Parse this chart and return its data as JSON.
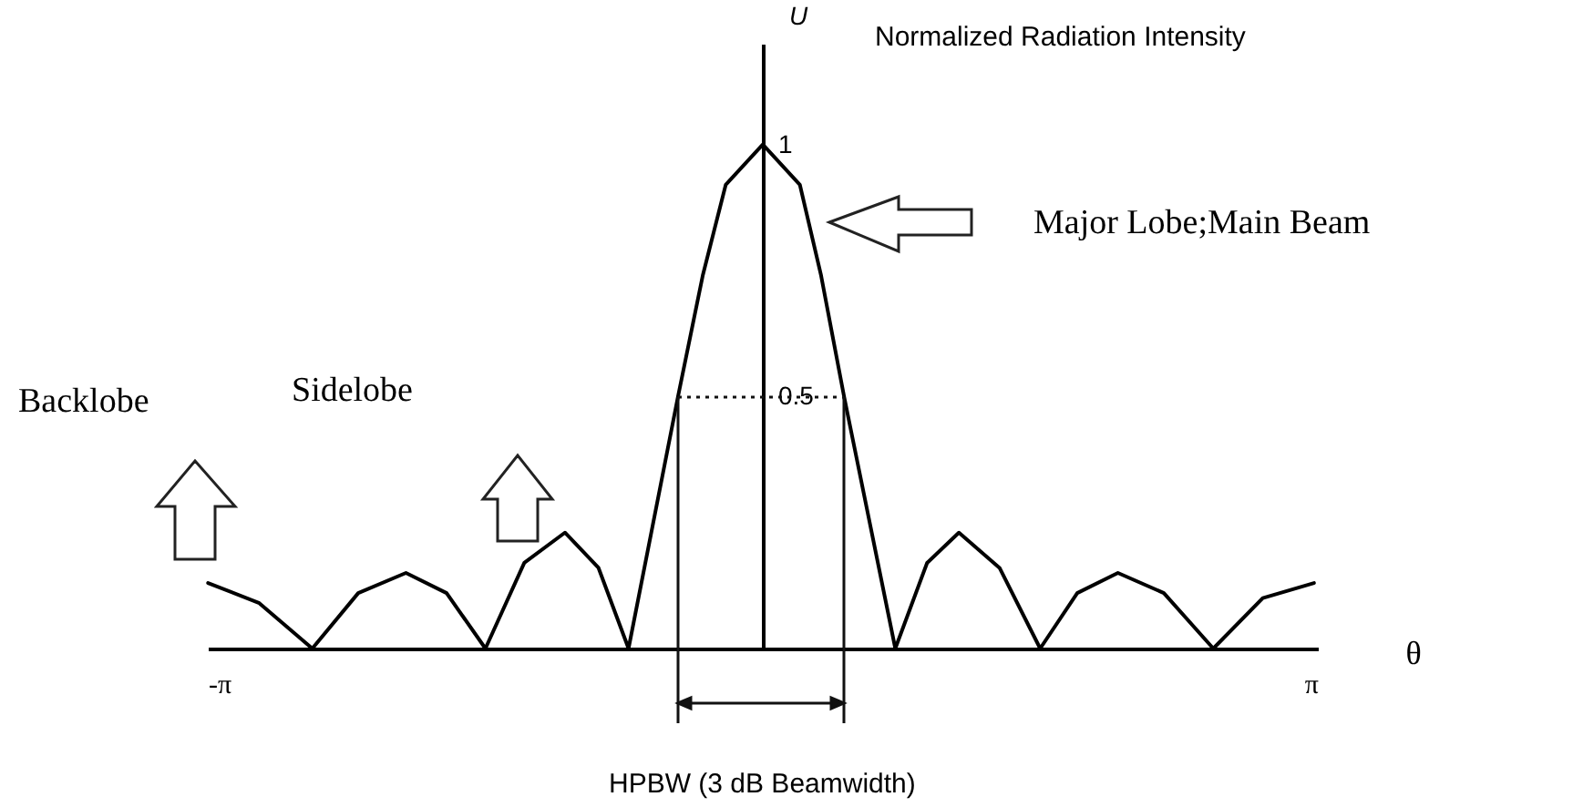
{
  "chart_data": {
    "type": "line",
    "xlabel": "θ",
    "ylabel": "U",
    "x": [
      -3.14,
      -2.85,
      -2.55,
      -2.29,
      -2.02,
      -1.79,
      -1.57,
      -1.35,
      -1.12,
      -0.93,
      -0.76,
      -0.48,
      -0.34,
      -0.21,
      0,
      0.21,
      0.33,
      0.46,
      0.75,
      0.93,
      1.11,
      1.34,
      1.57,
      1.78,
      2.01,
      2.27,
      2.55,
      2.83,
      3.12
    ],
    "series": [
      {
        "color": "#000000",
        "values": [
          0.13,
          0.09,
          0,
          0.11,
          0.15,
          0.11,
          0,
          0.17,
          0.23,
          0.16,
          0,
          0.5,
          0.74,
          0.92,
          1,
          0.92,
          0.74,
          0.5,
          0,
          0.17,
          0.23,
          0.16,
          0,
          0.11,
          0.15,
          0.11,
          0,
          0.1,
          0.13
        ]
      }
    ],
    "xlim": [
      -3.1416,
      3.1416
    ],
    "xticks": [
      {
        "value": -3.1416,
        "label": "-π"
      },
      {
        "value": 3.1416,
        "label": "π"
      }
    ],
    "ylim": [
      0,
      1.2
    ],
    "yticks": [
      0.5,
      1
    ],
    "grid": false,
    "marker": "none",
    "line_style": "solid",
    "annotations": [
      "Normalized Radiation Intensity",
      "Major Lobe;Main Beam",
      "Backlobe",
      "Sidelobe",
      "HPBW (3 dB Beamwidth)"
    ]
  }
}
